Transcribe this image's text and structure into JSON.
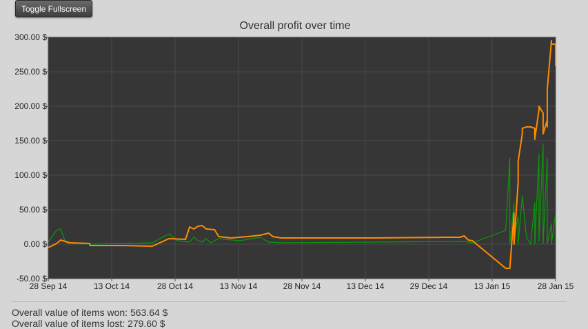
{
  "toolbar": {
    "toggle_label": "Toggle Fullscreen"
  },
  "colors": {
    "page_background": "#d6d6d6",
    "plot_background": "#363636",
    "grid": "#4a4a4a",
    "series_orange": "#ff8c00",
    "series_green": "#0a9a0a"
  },
  "chart_data": {
    "type": "line",
    "title": "Overall profit over time",
    "xlabel": "",
    "ylabel": "",
    "x_ticks": [
      "28 Sep 14",
      "13 Oct 14",
      "28 Oct 14",
      "13 Nov 14",
      "28 Nov 14",
      "13 Dec 14",
      "29 Dec 14",
      "13 Jan 15",
      "28 Jan 15"
    ],
    "xlim": [
      "2014-09-28",
      "2015-01-28"
    ],
    "y_ticks": [
      "-50.00 $",
      "0.00 $",
      "50.00 $",
      "100.00 $",
      "150.00 $",
      "200.00 $",
      "250.00 $",
      "300.00 $"
    ],
    "ylim": [
      -50,
      300
    ],
    "grid": true,
    "series": [
      {
        "color": "#ff8c00",
        "points": [
          [
            "2014-09-28",
            -5
          ],
          [
            "2014-09-30",
            1
          ],
          [
            "2014-10-01",
            6
          ],
          [
            "2014-10-03",
            2
          ],
          [
            "2014-10-08",
            1
          ],
          [
            "2014-10-08",
            -2
          ],
          [
            "2014-10-16",
            -2
          ],
          [
            "2014-10-23",
            -3
          ],
          [
            "2014-10-27",
            8
          ],
          [
            "2014-10-31",
            7
          ],
          [
            "2014-11-01",
            25
          ],
          [
            "2014-11-02",
            22
          ],
          [
            "2014-11-03",
            26
          ],
          [
            "2014-11-04",
            27
          ],
          [
            "2014-11-05",
            22
          ],
          [
            "2014-11-07",
            21
          ],
          [
            "2014-11-08",
            11
          ],
          [
            "2014-11-11",
            9
          ],
          [
            "2014-11-15",
            11
          ],
          [
            "2014-11-18",
            13
          ],
          [
            "2014-11-20",
            16
          ],
          [
            "2014-11-21",
            11
          ],
          [
            "2014-11-23",
            9
          ],
          [
            "2014-12-01",
            9
          ],
          [
            "2014-12-15",
            9
          ],
          [
            "2015-01-01",
            10
          ],
          [
            "2015-01-05",
            10
          ],
          [
            "2015-01-06",
            12
          ],
          [
            "2015-01-07",
            6
          ],
          [
            "2015-01-08",
            5
          ],
          [
            "2015-01-16",
            -35
          ],
          [
            "2015-01-17",
            -35
          ],
          [
            "2015-01-18",
            45
          ],
          [
            "2015-01-18",
            0
          ],
          [
            "2015-01-19",
            90
          ],
          [
            "2015-01-19",
            120
          ],
          [
            "2015-01-20",
            160
          ],
          [
            "2015-01-20",
            168
          ],
          [
            "2015-01-21",
            170
          ],
          [
            "2015-01-22",
            170
          ],
          [
            "2015-01-23",
            168
          ],
          [
            "2015-01-23",
            152
          ],
          [
            "2015-01-24",
            195
          ],
          [
            "2015-01-24",
            200
          ],
          [
            "2015-01-25",
            190
          ],
          [
            "2015-01-25",
            160
          ],
          [
            "2015-01-26",
            180
          ],
          [
            "2015-01-26",
            170
          ],
          [
            "2015-01-26",
            225
          ],
          [
            "2015-01-27",
            295
          ],
          [
            "2015-01-27",
            290
          ],
          [
            "2015-01-28",
            290
          ],
          [
            "2015-01-28",
            258
          ]
        ]
      },
      {
        "color": "#0a9a0a",
        "points": [
          [
            "2014-09-28",
            3
          ],
          [
            "2014-09-30",
            20
          ],
          [
            "2014-10-01",
            22
          ],
          [
            "2014-10-02",
            5
          ],
          [
            "2014-10-04",
            1
          ],
          [
            "2014-10-09",
            0
          ],
          [
            "2014-10-16",
            1
          ],
          [
            "2014-10-23",
            2
          ],
          [
            "2014-10-27",
            15
          ],
          [
            "2014-10-29",
            5
          ],
          [
            "2014-11-01",
            3
          ],
          [
            "2014-11-02",
            10
          ],
          [
            "2014-11-03",
            5
          ],
          [
            "2014-11-04",
            3
          ],
          [
            "2014-11-05",
            8
          ],
          [
            "2014-11-06",
            2
          ],
          [
            "2014-11-08",
            8
          ],
          [
            "2014-11-13",
            5
          ],
          [
            "2014-11-18",
            10
          ],
          [
            "2014-11-20",
            3
          ],
          [
            "2014-11-23",
            2
          ],
          [
            "2014-12-15",
            3
          ],
          [
            "2015-01-06",
            4
          ],
          [
            "2015-01-08",
            2
          ],
          [
            "2015-01-16",
            20
          ],
          [
            "2015-01-17",
            125
          ],
          [
            "2015-01-17",
            0
          ],
          [
            "2015-01-18",
            60
          ],
          [
            "2015-01-18",
            10
          ],
          [
            "2015-01-19",
            40
          ],
          [
            "2015-01-19",
            0
          ],
          [
            "2015-01-20",
            70
          ],
          [
            "2015-01-21",
            10
          ],
          [
            "2015-01-22",
            0
          ],
          [
            "2015-01-23",
            60
          ],
          [
            "2015-01-23",
            0
          ],
          [
            "2015-01-24",
            130
          ],
          [
            "2015-01-24",
            5
          ],
          [
            "2015-01-25",
            145
          ],
          [
            "2015-01-25",
            0
          ],
          [
            "2015-01-26",
            125
          ],
          [
            "2015-01-26",
            0
          ],
          [
            "2015-01-27",
            30
          ],
          [
            "2015-01-27",
            0
          ],
          [
            "2015-01-28",
            45
          ],
          [
            "2015-01-28",
            2
          ]
        ]
      }
    ]
  },
  "stats": {
    "won": "Overall value of items won: 563.64 $",
    "lost": "Overall value of items lost: 279.60 $"
  }
}
